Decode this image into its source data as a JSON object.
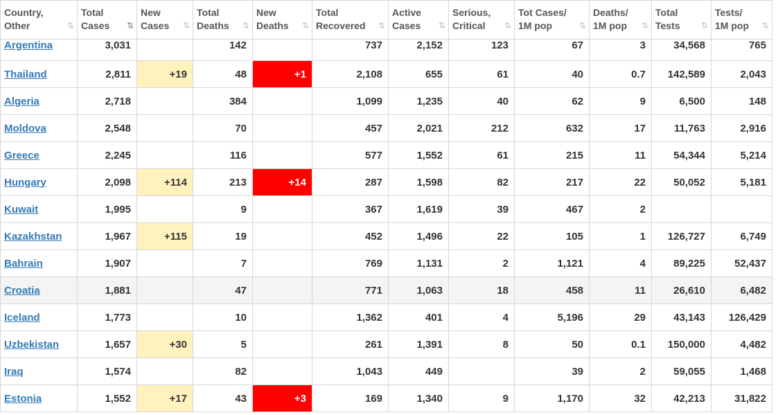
{
  "columns": [
    {
      "line1": "Country,",
      "line2": "Other",
      "sort_icon": "sort-icon"
    },
    {
      "line1": "Total",
      "line2": "Cases",
      "sort_icon": "sort-desc-icon"
    },
    {
      "line1": "New",
      "line2": "Cases",
      "sort_icon": "sort-icon"
    },
    {
      "line1": "Total",
      "line2": "Deaths",
      "sort_icon": "sort-icon"
    },
    {
      "line1": "New",
      "line2": "Deaths",
      "sort_icon": "sort-icon"
    },
    {
      "line1": "Total",
      "line2": "Recovered",
      "sort_icon": "sort-icon"
    },
    {
      "line1": "Active",
      "line2": "Cases",
      "sort_icon": "sort-icon"
    },
    {
      "line1": "Serious,",
      "line2": "Critical",
      "sort_icon": "sort-icon"
    },
    {
      "line1": "Tot Cases/",
      "line2": "1M pop",
      "sort_icon": "sort-icon"
    },
    {
      "line1": "Deaths/",
      "line2": "1M pop",
      "sort_icon": "sort-icon"
    },
    {
      "line1": "Total",
      "line2": "Tests",
      "sort_icon": "sort-icon"
    },
    {
      "line1": "Tests/",
      "line2": "1M pop",
      "sort_icon": "sort-icon"
    }
  ],
  "sort_glyph": "⇅",
  "rows": [
    {
      "country": "Argentina",
      "total_cases": "3,031",
      "new_cases": "",
      "total_deaths": "142",
      "new_deaths": "",
      "total_recovered": "737",
      "active_cases": "2,152",
      "serious_critical": "123",
      "tot_cases_1m": "67",
      "deaths_1m": "3",
      "total_tests": "34,568",
      "tests_1m": "765"
    },
    {
      "country": "Thailand",
      "total_cases": "2,811",
      "new_cases": "+19",
      "total_deaths": "48",
      "new_deaths": "+1",
      "total_recovered": "2,108",
      "active_cases": "655",
      "serious_critical": "61",
      "tot_cases_1m": "40",
      "deaths_1m": "0.7",
      "total_tests": "142,589",
      "tests_1m": "2,043"
    },
    {
      "country": "Algeria",
      "total_cases": "2,718",
      "new_cases": "",
      "total_deaths": "384",
      "new_deaths": "",
      "total_recovered": "1,099",
      "active_cases": "1,235",
      "serious_critical": "40",
      "tot_cases_1m": "62",
      "deaths_1m": "9",
      "total_tests": "6,500",
      "tests_1m": "148"
    },
    {
      "country": "Moldova",
      "total_cases": "2,548",
      "new_cases": "",
      "total_deaths": "70",
      "new_deaths": "",
      "total_recovered": "457",
      "active_cases": "2,021",
      "serious_critical": "212",
      "tot_cases_1m": "632",
      "deaths_1m": "17",
      "total_tests": "11,763",
      "tests_1m": "2,916"
    },
    {
      "country": "Greece",
      "total_cases": "2,245",
      "new_cases": "",
      "total_deaths": "116",
      "new_deaths": "",
      "total_recovered": "577",
      "active_cases": "1,552",
      "serious_critical": "61",
      "tot_cases_1m": "215",
      "deaths_1m": "11",
      "total_tests": "54,344",
      "tests_1m": "5,214"
    },
    {
      "country": "Hungary",
      "total_cases": "2,098",
      "new_cases": "+114",
      "total_deaths": "213",
      "new_deaths": "+14",
      "total_recovered": "287",
      "active_cases": "1,598",
      "serious_critical": "82",
      "tot_cases_1m": "217",
      "deaths_1m": "22",
      "total_tests": "50,052",
      "tests_1m": "5,181"
    },
    {
      "country": "Kuwait",
      "total_cases": "1,995",
      "new_cases": "",
      "total_deaths": "9",
      "new_deaths": "",
      "total_recovered": "367",
      "active_cases": "1,619",
      "serious_critical": "39",
      "tot_cases_1m": "467",
      "deaths_1m": "2",
      "total_tests": "",
      "tests_1m": ""
    },
    {
      "country": "Kazakhstan",
      "total_cases": "1,967",
      "new_cases": "+115",
      "total_deaths": "19",
      "new_deaths": "",
      "total_recovered": "452",
      "active_cases": "1,496",
      "serious_critical": "22",
      "tot_cases_1m": "105",
      "deaths_1m": "1",
      "total_tests": "126,727",
      "tests_1m": "6,749"
    },
    {
      "country": "Bahrain",
      "total_cases": "1,907",
      "new_cases": "",
      "total_deaths": "7",
      "new_deaths": "",
      "total_recovered": "769",
      "active_cases": "1,131",
      "serious_critical": "2",
      "tot_cases_1m": "1,121",
      "deaths_1m": "4",
      "total_tests": "89,225",
      "tests_1m": "52,437"
    },
    {
      "country": "Croatia",
      "total_cases": "1,881",
      "new_cases": "",
      "total_deaths": "47",
      "new_deaths": "",
      "total_recovered": "771",
      "active_cases": "1,063",
      "serious_critical": "18",
      "tot_cases_1m": "458",
      "deaths_1m": "11",
      "total_tests": "26,610",
      "tests_1m": "6,482"
    },
    {
      "country": "Iceland",
      "total_cases": "1,773",
      "new_cases": "",
      "total_deaths": "10",
      "new_deaths": "",
      "total_recovered": "1,362",
      "active_cases": "401",
      "serious_critical": "4",
      "tot_cases_1m": "5,196",
      "deaths_1m": "29",
      "total_tests": "43,143",
      "tests_1m": "126,429"
    },
    {
      "country": "Uzbekistan",
      "total_cases": "1,657",
      "new_cases": "+30",
      "total_deaths": "5",
      "new_deaths": "",
      "total_recovered": "261",
      "active_cases": "1,391",
      "serious_critical": "8",
      "tot_cases_1m": "50",
      "deaths_1m": "0.1",
      "total_tests": "150,000",
      "tests_1m": "4,482"
    },
    {
      "country": "Iraq",
      "total_cases": "1,574",
      "new_cases": "",
      "total_deaths": "82",
      "new_deaths": "",
      "total_recovered": "1,043",
      "active_cases": "449",
      "serious_critical": "",
      "tot_cases_1m": "39",
      "deaths_1m": "2",
      "total_tests": "59,055",
      "tests_1m": "1,468"
    },
    {
      "country": "Estonia",
      "total_cases": "1,552",
      "new_cases": "+17",
      "total_deaths": "43",
      "new_deaths": "+3",
      "total_recovered": "169",
      "active_cases": "1,340",
      "serious_critical": "9",
      "tot_cases_1m": "1,170",
      "deaths_1m": "32",
      "total_tests": "42,213",
      "tests_1m": "31,822"
    }
  ],
  "highlighted_row": "Croatia",
  "colors": {
    "link": "#337ab7",
    "new_cases_bg": "#fff3bd",
    "new_deaths_bg": "#ff0000",
    "highlight_row_bg": "#f4f4f4",
    "border": "#d6d6d6"
  }
}
